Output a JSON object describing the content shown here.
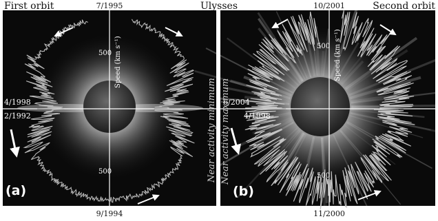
{
  "figure": {
    "title": "Ulysses",
    "panels": [
      {
        "heading": "First orbit",
        "label": "(a)",
        "date_top": "7/1995",
        "date_bottom": "9/1994",
        "date_left_upper": "4/1998",
        "date_left_lower": "2/1992",
        "side_text": "Near activity minimum",
        "axis_label": "Speed (km s⁻¹)",
        "tick_upper": "500",
        "tick_lower": "500"
      },
      {
        "heading": "Second orbit",
        "label": "(b)",
        "date_top": "10/2001",
        "date_bottom": "11/2000",
        "date_left_upper": "6/2004",
        "date_left_lower": "4/1998",
        "side_text": "Near activity maximum",
        "axis_label": "Speed (km s⁻¹)",
        "tick_upper": "500",
        "tick_lower": "500"
      }
    ]
  },
  "colors": {
    "background": "#ffffff",
    "panel_bg": "#0a0a0a",
    "trace": "#b8b8b8",
    "arrow": "#ffffff",
    "axis": "#ffffff",
    "sun": "#3c3c3c",
    "text": "#111111"
  },
  "icons": [
    "orbit-direction-arrow"
  ]
}
